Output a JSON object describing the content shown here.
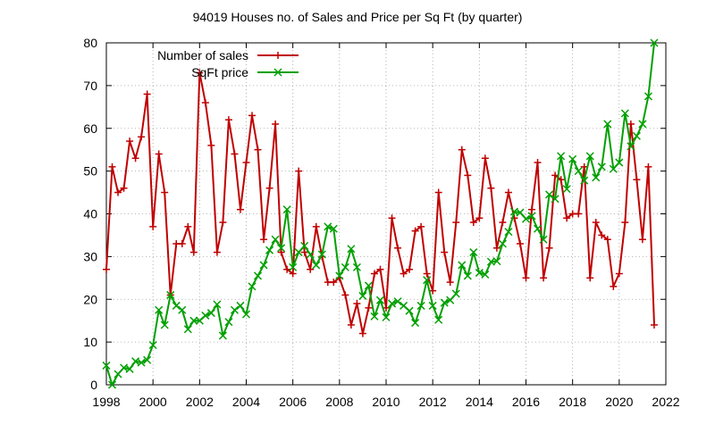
{
  "chart_data": {
    "type": "line",
    "title": "94019 Houses no. of Sales and Price per Sq Ft (by quarter)",
    "xlabel": "",
    "ylabel": "",
    "xlim": [
      1998,
      2022
    ],
    "ylim": [
      0,
      80
    ],
    "x_ticks": [
      1998,
      2000,
      2002,
      2004,
      2006,
      2008,
      2010,
      2012,
      2014,
      2016,
      2018,
      2020,
      2022
    ],
    "y_ticks": [
      0,
      10,
      20,
      30,
      40,
      50,
      60,
      70,
      80
    ],
    "grid": true,
    "legend_position": "top-left",
    "x": [
      1998.0,
      1998.25,
      1998.5,
      1998.75,
      1999.0,
      1999.25,
      1999.5,
      1999.75,
      2000.0,
      2000.25,
      2000.5,
      2000.75,
      2001.0,
      2001.25,
      2001.5,
      2001.75,
      2002.0,
      2002.25,
      2002.5,
      2002.75,
      2003.0,
      2003.25,
      2003.5,
      2003.75,
      2004.0,
      2004.25,
      2004.5,
      2004.75,
      2005.0,
      2005.25,
      2005.5,
      2005.75,
      2006.0,
      2006.25,
      2006.5,
      2006.75,
      2007.0,
      2007.25,
      2007.5,
      2007.75,
      2008.0,
      2008.25,
      2008.5,
      2008.75,
      2009.0,
      2009.25,
      2009.5,
      2009.75,
      2010.0,
      2010.25,
      2010.5,
      2010.75,
      2011.0,
      2011.25,
      2011.5,
      2011.75,
      2012.0,
      2012.25,
      2012.5,
      2012.75,
      2013.0,
      2013.25,
      2013.5,
      2013.75,
      2014.0,
      2014.25,
      2014.5,
      2014.75,
      2015.0,
      2015.25,
      2015.5,
      2015.75,
      2016.0,
      2016.25,
      2016.5,
      2016.75,
      2017.0,
      2017.25,
      2017.5,
      2017.75,
      2018.0,
      2018.25,
      2018.5,
      2018.75,
      2019.0,
      2019.25,
      2019.5,
      2019.75,
      2020.0,
      2020.25,
      2020.5,
      2020.75,
      2021.0,
      2021.25,
      2021.5
    ],
    "series": [
      {
        "name": "Number of sales",
        "color": "#c00000",
        "marker": "plus",
        "values": [
          27,
          51,
          45,
          46,
          57,
          53,
          58,
          68,
          37,
          54,
          45,
          21,
          33,
          33,
          37,
          31,
          73,
          66,
          56,
          31,
          38,
          62,
          54,
          41,
          52,
          63,
          55,
          34,
          46,
          61,
          31,
          27,
          26,
          50,
          31,
          27,
          37,
          30,
          24,
          24,
          25,
          21,
          14,
          19,
          12,
          18,
          26,
          27,
          18,
          39,
          32,
          26,
          27,
          36,
          37,
          26,
          22,
          45,
          31,
          24,
          38,
          55,
          49,
          38,
          39,
          53,
          46,
          32,
          38,
          45,
          39,
          33,
          25,
          41,
          52,
          25,
          32,
          49,
          48,
          39,
          40,
          40,
          51,
          25,
          38,
          35,
          34,
          23,
          26,
          38,
          61,
          48,
          34,
          51,
          14
        ]
      },
      {
        "name": "SqFt price",
        "color": "#00a000",
        "marker": "x",
        "values": [
          4.5,
          0,
          2.5,
          4,
          3.7,
          5.5,
          5.2,
          5.8,
          9.3,
          17.5,
          14,
          21,
          18.5,
          17.5,
          13,
          15,
          15,
          16.2,
          16.8,
          18.8,
          11.5,
          14.7,
          17.5,
          18.5,
          16.5,
          23,
          25.5,
          28,
          31.5,
          34,
          32,
          41,
          27.5,
          31,
          32.5,
          30.5,
          28,
          30.5,
          37,
          36.5,
          25.5,
          27.5,
          31.8,
          27.5,
          20.8,
          23.2,
          16,
          19.8,
          15.8,
          19,
          19.5,
          18.5,
          17.3,
          14.5,
          18.5,
          24.5,
          18.5,
          15.2,
          19.2,
          19.8,
          21.3,
          28,
          25.5,
          31,
          26.2,
          25.8,
          28.8,
          28.9,
          33,
          35.8,
          40.5,
          40.3,
          38.8,
          39.5,
          36.5,
          34,
          44.5,
          43.5,
          53.5,
          45.8,
          52.8,
          50,
          47.8,
          53.5,
          48.5,
          51,
          61,
          50.5,
          52,
          63.5,
          55.8,
          58.2,
          61,
          67.5,
          80
        ]
      }
    ]
  }
}
